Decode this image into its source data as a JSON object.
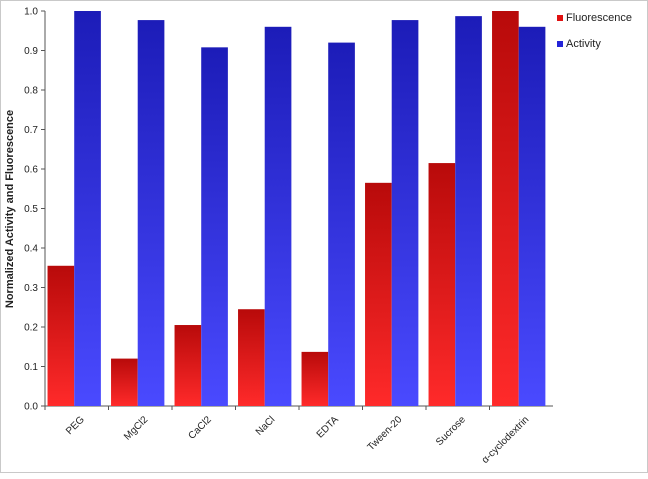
{
  "chart_data": {
    "type": "bar",
    "ylabel": "Normalized Activity and Fluorescence",
    "ylim": [
      0,
      1.0
    ],
    "yticks": [
      "0.0",
      "0.1",
      "0.2",
      "0.3",
      "0.4",
      "0.5",
      "0.6",
      "0.7",
      "0.8",
      "0.9",
      "1.0"
    ],
    "grid": false,
    "legend_position": "top-right",
    "categories": [
      "PEG",
      "MgCl2",
      "CaCl2",
      "NaCl",
      "EDTA",
      "Tween-20",
      "Sucrose",
      "α-cyclodextrin"
    ],
    "series": [
      {
        "name": "Fluorescence",
        "color": "#e01010",
        "values": [
          0.355,
          0.12,
          0.205,
          0.245,
          0.137,
          0.565,
          0.615,
          1.0
        ]
      },
      {
        "name": "Activity",
        "color": "#2424d8",
        "values": [
          1.0,
          0.977,
          0.908,
          0.96,
          0.92,
          0.977,
          0.987,
          0.96
        ]
      }
    ]
  }
}
